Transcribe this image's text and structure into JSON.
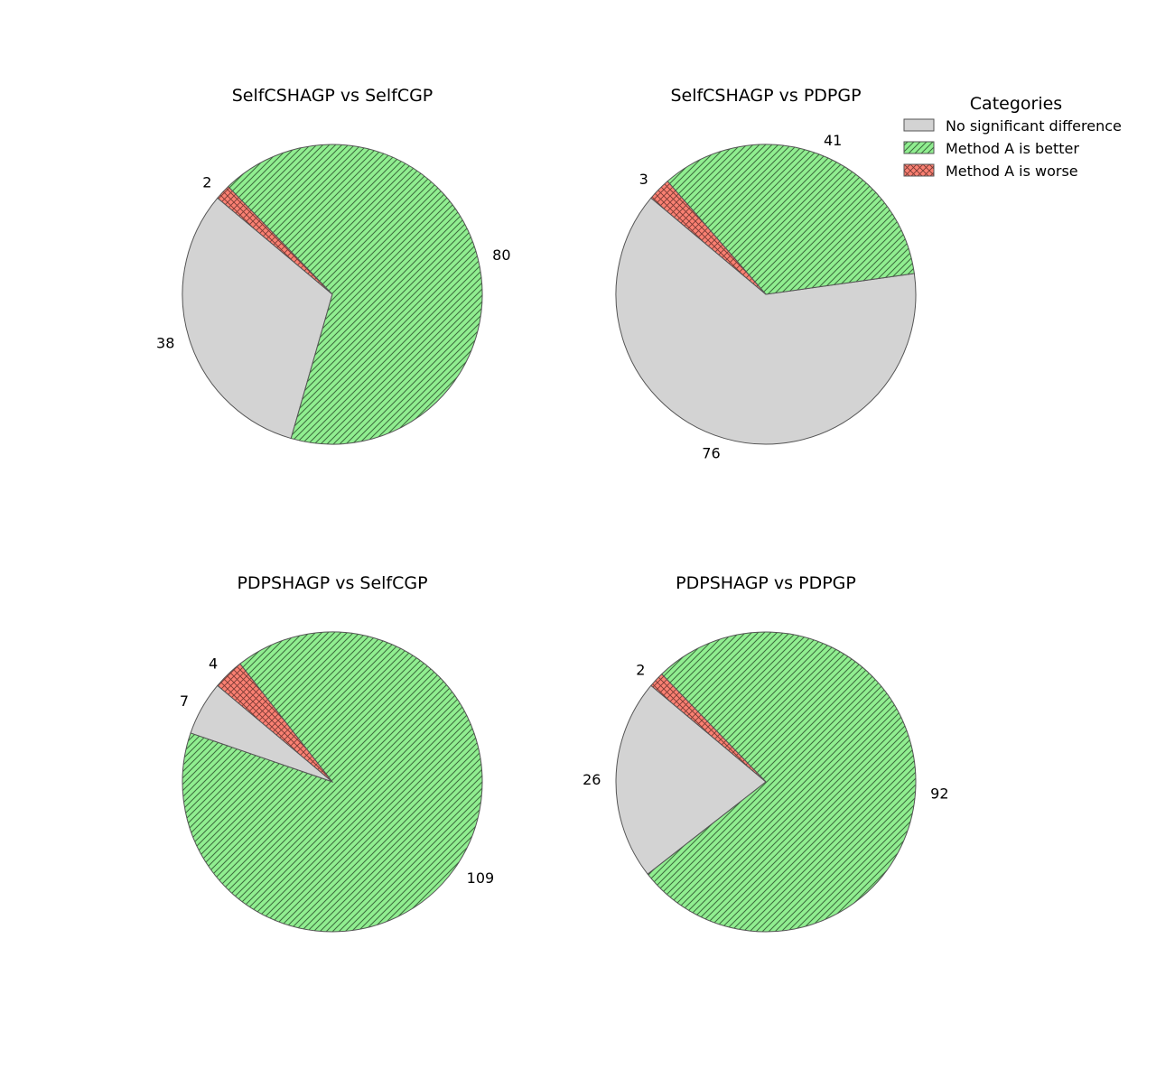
{
  "chart_data": [
    {
      "type": "pie",
      "title": "SelfCSHAGP vs SelfCGP",
      "categories": [
        "No significant difference",
        "Method A is better",
        "Method A is worse"
      ],
      "values": [
        38,
        80,
        2
      ]
    },
    {
      "type": "pie",
      "title": "SelfCSHAGP vs PDPGP",
      "categories": [
        "No significant difference",
        "Method A is better",
        "Method A is worse"
      ],
      "values": [
        76,
        41,
        3
      ]
    },
    {
      "type": "pie",
      "title": "PDPSHAGP vs SelfCGP",
      "categories": [
        "No significant difference",
        "Method A is better",
        "Method A is worse"
      ],
      "values": [
        7,
        109,
        4
      ]
    },
    {
      "type": "pie",
      "title": "PDPSHAGP vs PDPGP",
      "categories": [
        "No significant difference",
        "Method A is better",
        "Method A is worse"
      ],
      "values": [
        26,
        92,
        2
      ]
    }
  ],
  "start_angle_deg": 140,
  "legend": {
    "title": "Categories",
    "placement": "top-right",
    "items": [
      {
        "label": "No significant difference",
        "color": "#d3d3d3",
        "hatch": "none"
      },
      {
        "label": "Method A is better",
        "color": "#90ee90",
        "hatch": "diagonal"
      },
      {
        "label": "Method A is worse",
        "color": "#fa8072",
        "hatch": "cross"
      }
    ]
  }
}
